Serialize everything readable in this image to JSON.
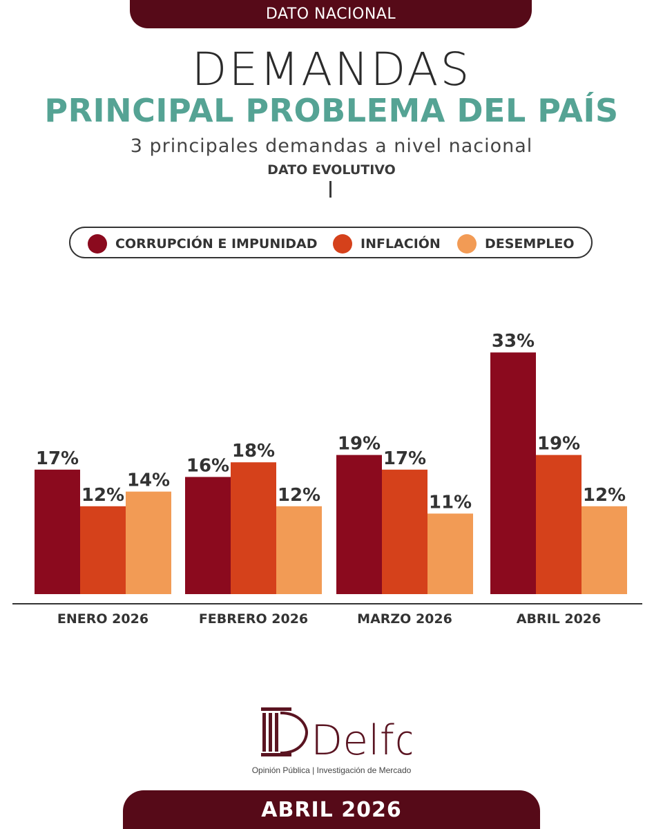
{
  "header": {
    "banner": "DATO NACIONAL",
    "title": "DEMANDAS",
    "headline": "PRINCIPAL PROBLEMA DEL PAÍS",
    "subtitle": "3 principales demandas a nivel nacional",
    "kicker": "DATO EVOLUTIVO"
  },
  "legend": [
    {
      "label": "CORRUPCIÓN E IMPUNIDAD",
      "color": "#8b0a1e"
    },
    {
      "label": "INFLACIÓN",
      "color": "#d5411b"
    },
    {
      "label": "DESEMPLEO",
      "color": "#f29b55"
    }
  ],
  "chart_data": {
    "type": "bar",
    "categories": [
      "ENERO 2026",
      "FEBRERO 2026",
      "MARZO 2026",
      "ABRIL 2026"
    ],
    "series": [
      {
        "name": "CORRUPCIÓN E IMPUNIDAD",
        "values": [
          17,
          16,
          19,
          33
        ],
        "color": "#8b0a1e"
      },
      {
        "name": "INFLACIÓN",
        "values": [
          12,
          18,
          17,
          19
        ],
        "color": "#d5411b"
      },
      {
        "name": "DESEMPLEO",
        "values": [
          14,
          12,
          11,
          12
        ],
        "color": "#f29b55"
      }
    ],
    "value_suffix": "%",
    "title": "",
    "xlabel": "",
    "ylabel": "",
    "ylim": [
      0,
      35
    ],
    "grid": false,
    "legend_position": "top"
  },
  "brand": {
    "name": "Delfos",
    "tagline": "Opinión Pública | Investigación de Mercado",
    "color": "#5a1421"
  },
  "footer": {
    "banner": "ABRIL 2026"
  }
}
